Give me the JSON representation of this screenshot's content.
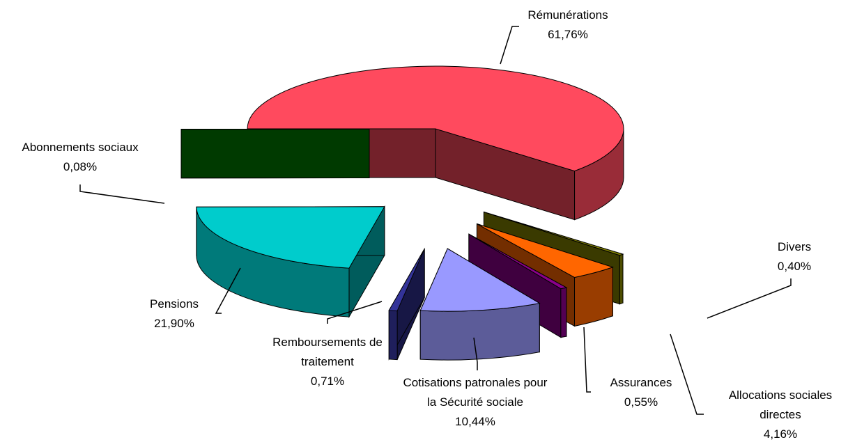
{
  "chart_data": {
    "type": "pie",
    "categories": [
      "Rémunérations",
      "Divers",
      "Allocations sociales\ndirectes",
      "Assurances",
      "Cotisations patronales pour\nla Sécurité sociale",
      "Remboursements de\ntraitement",
      "Pensions",
      "Abonnements sociaux"
    ],
    "values": [
      61.76,
      0.4,
      4.16,
      0.55,
      10.44,
      0.71,
      21.9,
      0.08
    ],
    "value_labels": [
      "61,76%",
      "0,40%",
      "4,16%",
      "0,55%",
      "10,44%",
      "0,71%",
      "21,90%",
      "0,08%"
    ],
    "colors": [
      "#ff4a5e",
      "#808000",
      "#ff6600",
      "#8b008b",
      "#9999ff",
      "#333399",
      "#00cccc",
      "#008000"
    ]
  }
}
